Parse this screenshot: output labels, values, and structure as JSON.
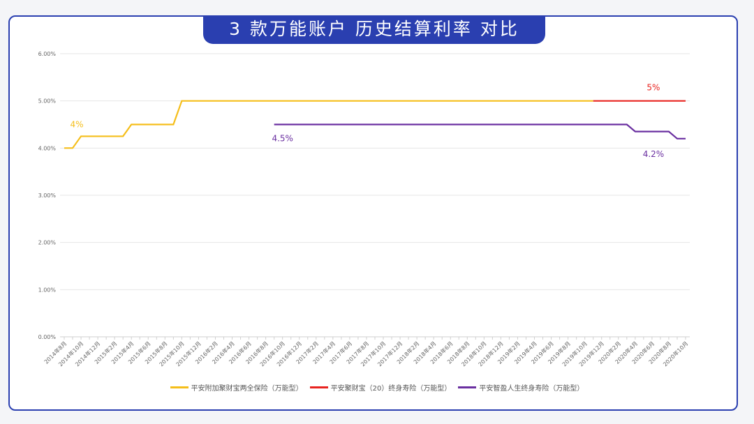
{
  "chart_data": {
    "type": "line",
    "title": "3 款万能账户 历史结算利率 对比",
    "xlabel": "",
    "ylabel": "",
    "ylim": [
      0,
      6
    ],
    "y_ticks": [
      "0.00%",
      "1.00%",
      "2.00%",
      "3.00%",
      "4.00%",
      "5.00%",
      "6.00%"
    ],
    "x_tick_labels": [
      "2014年8月",
      "2014年10月",
      "2014年12月",
      "2015年2月",
      "2015年4月",
      "2015年6月",
      "2015年8月",
      "2015年10月",
      "2015年12月",
      "2016年2月",
      "2016年4月",
      "2016年6月",
      "2016年8月",
      "2016年10月",
      "2016年12月",
      "2017年2月",
      "2017年4月",
      "2017年6月",
      "2017年8月",
      "2017年10月",
      "2017年12月",
      "2018年2月",
      "2018年4月",
      "2018年6月",
      "2018年8月",
      "2018年10月",
      "2018年12月",
      "2019年2月",
      "2019年4月",
      "2019年6月",
      "2019年8月",
      "2019年10月",
      "2019年12月",
      "2020年2月",
      "2020年4月",
      "2020年6月",
      "2020年8月",
      "2020年10月"
    ],
    "grid": true,
    "legend_position": "bottom",
    "series": [
      {
        "name": "平安附加聚财宝两全保险（万能型）",
        "color": "#f5be1a",
        "points": [
          [
            "2014-08",
            4.0
          ],
          [
            "2014-09",
            4.0
          ],
          [
            "2014-10",
            4.25
          ],
          [
            "2015-03",
            4.25
          ],
          [
            "2015-04",
            4.5
          ],
          [
            "2015-09",
            4.5
          ],
          [
            "2015-10",
            5.0
          ],
          [
            "2019-11",
            5.0
          ]
        ]
      },
      {
        "name": "平安聚财宝（20）终身寿险（万能型）",
        "color": "#e8231f",
        "points": [
          [
            "2019-11",
            5.0
          ],
          [
            "2020-10",
            5.0
          ]
        ]
      },
      {
        "name": "平安智盈人生终身寿险（万能型）",
        "color": "#6a2fa0",
        "points": [
          [
            "2016-09",
            4.5
          ],
          [
            "2020-03",
            4.5
          ],
          [
            "2020-04",
            4.35
          ],
          [
            "2020-08",
            4.35
          ],
          [
            "2020-09",
            4.2
          ],
          [
            "2020-10",
            4.2
          ]
        ]
      }
    ],
    "annotations": [
      {
        "text": "4%",
        "series": 0,
        "at": [
          "2014-09",
          4.0
        ]
      },
      {
        "text": "5%",
        "series": 1,
        "at": [
          "2020-08",
          5.0
        ]
      },
      {
        "text": "4.5%",
        "series": 2,
        "at": [
          "2016-10",
          4.5
        ]
      },
      {
        "text": "4.2%",
        "series": 2,
        "at": [
          "2020-08",
          4.2
        ]
      }
    ]
  }
}
